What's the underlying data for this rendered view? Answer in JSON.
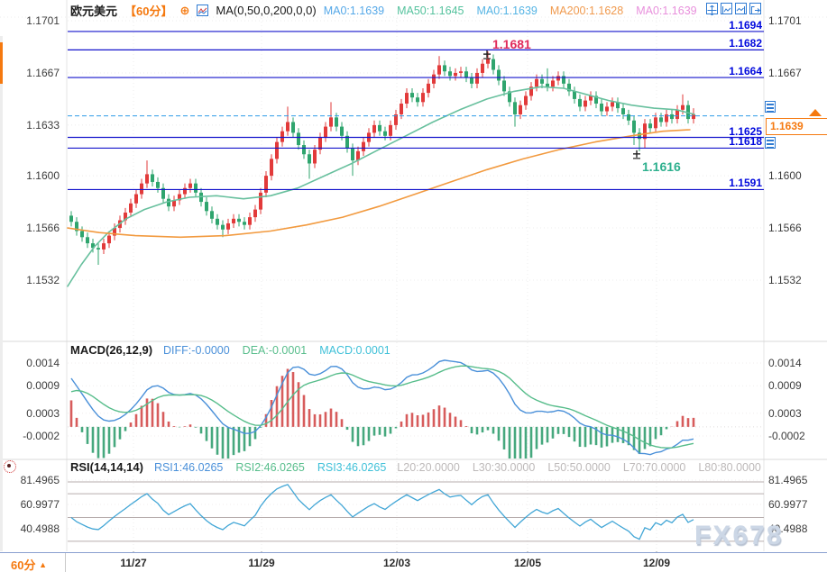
{
  "colors": {
    "candle_up": "#e23a3a",
    "candle_down": "#2fa56e",
    "level_line": "#1414cc",
    "level_label": "#0008dd",
    "current_price_line": "#2f9ce8",
    "price_tag_orange": "#f5790f",
    "macd_diff": "#4a90d9",
    "macd_dea": "#57bd8b",
    "macd_hist_up": "#d75c5c",
    "macd_hist_down": "#46a87e",
    "rsi_line": "#42a6d6",
    "rsi_level_line": "#b7adad",
    "annotation_high": "#e02a5a",
    "annotation_low": "#2eb08e",
    "header_timeframe_orange": "#f5790f"
  },
  "header": {
    "symbol": "欧元美元",
    "timeframe": "【60分】",
    "ma_formula": "MA(0,50,0,200,0,0)",
    "ma_values": [
      {
        "text": "MA0:1.1639",
        "color": "#55a8e8"
      },
      {
        "text": "MA50:1.1645",
        "color": "#55c29d"
      },
      {
        "text": "MA0:1.1639",
        "color": "#55b4e4"
      },
      {
        "text": "MA200:1.1628",
        "color": "#f09a4e"
      },
      {
        "text": "MA0:1.1639",
        "color": "#e890dc"
      }
    ]
  },
  "icons": {
    "toolbar": [
      "pan-crosshair",
      "left-axis-chart",
      "right-axis-chart",
      "exit-marker"
    ],
    "header": [
      "add-indicator-circle-plus",
      "ma-mini-chart"
    ],
    "rsi": [
      "sun-burst"
    ]
  },
  "chart_data": [
    {
      "type": "candlestick",
      "title": "欧元美元 60分",
      "y_ticks": [
        1.1701,
        1.1667,
        1.1633,
        1.16,
        1.1566,
        1.1532
      ],
      "x_ticks": [
        {
          "label": "11/27",
          "x": 148
        },
        {
          "label": "11/29",
          "x": 290
        },
        {
          "label": "12/03",
          "x": 440
        },
        {
          "label": "12/05",
          "x": 585
        },
        {
          "label": "12/09",
          "x": 728
        }
      ],
      "levels": [
        1.1694,
        1.1682,
        1.1664,
        1.1625,
        1.1618,
        1.1591
      ],
      "current_price": 1.1639,
      "annotations": [
        {
          "text": "1.1681",
          "x": 540,
          "price": 1.1681,
          "color": "#e02a5a",
          "placement": "above"
        },
        {
          "text": "1.1616",
          "x": 706,
          "price": 1.1616,
          "color": "#2eb08e",
          "placement": "below"
        }
      ],
      "candles": [
        [
          1.1574,
          1.1577,
          1.1567,
          1.157
        ],
        [
          1.157,
          1.1573,
          1.1561,
          1.1564
        ],
        [
          1.1564,
          1.1567,
          1.1557,
          1.156
        ],
        [
          1.156,
          1.1563,
          1.1553,
          1.1556
        ],
        [
          1.1556,
          1.1559,
          1.155,
          1.1553
        ],
        [
          1.1553,
          1.1556,
          1.1542,
          1.1552
        ],
        [
          1.1552,
          1.1559,
          1.1549,
          1.1556
        ],
        [
          1.1556,
          1.1564,
          1.1553,
          1.1561
        ],
        [
          1.1561,
          1.1569,
          1.1558,
          1.1566
        ],
        [
          1.1566,
          1.1574,
          1.1563,
          1.1571
        ],
        [
          1.1571,
          1.1579,
          1.1568,
          1.1576
        ],
        [
          1.1576,
          1.1585,
          1.1573,
          1.1582
        ],
        [
          1.1582,
          1.1591,
          1.1579,
          1.1588
        ],
        [
          1.1588,
          1.1598,
          1.1585,
          1.1595
        ],
        [
          1.1595,
          1.161,
          1.1592,
          1.1601
        ],
        [
          1.1601,
          1.1604,
          1.1593,
          1.1596
        ],
        [
          1.1596,
          1.1599,
          1.1589,
          1.1592
        ],
        [
          1.1592,
          1.1595,
          1.1582,
          1.1585
        ],
        [
          1.1585,
          1.1588,
          1.1577,
          1.158
        ],
        [
          1.158,
          1.1587,
          1.1577,
          1.1584
        ],
        [
          1.1584,
          1.1591,
          1.1581,
          1.1588
        ],
        [
          1.1588,
          1.1595,
          1.1585,
          1.1592
        ],
        [
          1.1592,
          1.1598,
          1.1589,
          1.1595
        ],
        [
          1.1595,
          1.1598,
          1.1586,
          1.1589
        ],
        [
          1.1589,
          1.1592,
          1.158,
          1.1583
        ],
        [
          1.1583,
          1.1586,
          1.1574,
          1.1577
        ],
        [
          1.1577,
          1.158,
          1.1569,
          1.1572
        ],
        [
          1.1572,
          1.1575,
          1.1565,
          1.1568
        ],
        [
          1.1568,
          1.1571,
          1.156,
          1.1565
        ],
        [
          1.1565,
          1.1572,
          1.1562,
          1.1569
        ],
        [
          1.1569,
          1.1575,
          1.1566,
          1.1572
        ],
        [
          1.1572,
          1.1575,
          1.1567,
          1.157
        ],
        [
          1.157,
          1.1573,
          1.1565,
          1.1568
        ],
        [
          1.1568,
          1.1576,
          1.1565,
          1.1573
        ],
        [
          1.1573,
          1.1581,
          1.157,
          1.1578
        ],
        [
          1.1578,
          1.1592,
          1.1575,
          1.1589
        ],
        [
          1.1589,
          1.1603,
          1.1586,
          1.16
        ],
        [
          1.16,
          1.1614,
          1.1597,
          1.1611
        ],
        [
          1.1611,
          1.1625,
          1.1608,
          1.1622
        ],
        [
          1.1622,
          1.1632,
          1.1619,
          1.1629
        ],
        [
          1.1629,
          1.1645,
          1.1626,
          1.1635
        ],
        [
          1.1635,
          1.1638,
          1.1625,
          1.1628
        ],
        [
          1.1628,
          1.1631,
          1.1617,
          1.162
        ],
        [
          1.162,
          1.1623,
          1.1611,
          1.1614
        ],
        [
          1.1614,
          1.1617,
          1.1598,
          1.1608
        ],
        [
          1.1608,
          1.162,
          1.1605,
          1.1617
        ],
        [
          1.1617,
          1.1628,
          1.1614,
          1.1625
        ],
        [
          1.1625,
          1.1635,
          1.1622,
          1.1632
        ],
        [
          1.1632,
          1.1648,
          1.1629,
          1.1638
        ],
        [
          1.1638,
          1.1641,
          1.1629,
          1.1632
        ],
        [
          1.1632,
          1.1635,
          1.1623,
          1.1626
        ],
        [
          1.1626,
          1.1629,
          1.1615,
          1.1618
        ],
        [
          1.1618,
          1.1621,
          1.16,
          1.161
        ],
        [
          1.161,
          1.1619,
          1.1607,
          1.1616
        ],
        [
          1.1616,
          1.1625,
          1.1613,
          1.1622
        ],
        [
          1.1622,
          1.1631,
          1.1619,
          1.1628
        ],
        [
          1.1628,
          1.1636,
          1.1625,
          1.1633
        ],
        [
          1.1633,
          1.1636,
          1.1626,
          1.1629
        ],
        [
          1.1629,
          1.1632,
          1.1623,
          1.1626
        ],
        [
          1.1626,
          1.1636,
          1.1623,
          1.1633
        ],
        [
          1.1633,
          1.1643,
          1.163,
          1.164
        ],
        [
          1.164,
          1.165,
          1.1637,
          1.1647
        ],
        [
          1.1647,
          1.1657,
          1.1644,
          1.1654
        ],
        [
          1.1654,
          1.1657,
          1.1648,
          1.1651
        ],
        [
          1.1651,
          1.1654,
          1.1645,
          1.1648
        ],
        [
          1.1648,
          1.1657,
          1.1645,
          1.1654
        ],
        [
          1.1654,
          1.1663,
          1.1651,
          1.166
        ],
        [
          1.166,
          1.1669,
          1.1657,
          1.1666
        ],
        [
          1.1666,
          1.1678,
          1.1663,
          1.1672
        ],
        [
          1.1672,
          1.1675,
          1.1665,
          1.1668
        ],
        [
          1.1668,
          1.1671,
          1.1662,
          1.1665
        ],
        [
          1.1665,
          1.167,
          1.1662,
          1.1667
        ],
        [
          1.1667,
          1.1671,
          1.1664,
          1.1668
        ],
        [
          1.1668,
          1.1671,
          1.1661,
          1.1664
        ],
        [
          1.1664,
          1.1667,
          1.1657,
          1.166
        ],
        [
          1.166,
          1.167,
          1.1657,
          1.1667
        ],
        [
          1.1667,
          1.1676,
          1.1664,
          1.1673
        ],
        [
          1.1673,
          1.1681,
          1.167,
          1.1676
        ],
        [
          1.1676,
          1.1679,
          1.1666,
          1.1669
        ],
        [
          1.1669,
          1.1672,
          1.1659,
          1.1662
        ],
        [
          1.1662,
          1.1665,
          1.1652,
          1.1655
        ],
        [
          1.1655,
          1.1658,
          1.1645,
          1.1648
        ],
        [
          1.1648,
          1.1651,
          1.1632,
          1.164
        ],
        [
          1.164,
          1.1649,
          1.1637,
          1.1646
        ],
        [
          1.1646,
          1.1655,
          1.1643,
          1.1652
        ],
        [
          1.1652,
          1.1661,
          1.1649,
          1.1658
        ],
        [
          1.1658,
          1.1666,
          1.1655,
          1.1663
        ],
        [
          1.1663,
          1.1666,
          1.1657,
          1.166
        ],
        [
          1.166,
          1.167,
          1.1655,
          1.1658
        ],
        [
          1.1658,
          1.1665,
          1.1655,
          1.1662
        ],
        [
          1.1662,
          1.1668,
          1.1659,
          1.1665
        ],
        [
          1.1665,
          1.1668,
          1.1657,
          1.166
        ],
        [
          1.166,
          1.1663,
          1.1652,
          1.1655
        ],
        [
          1.1655,
          1.1658,
          1.1647,
          1.165
        ],
        [
          1.165,
          1.1653,
          1.1642,
          1.1645
        ],
        [
          1.1645,
          1.1652,
          1.1642,
          1.1649
        ],
        [
          1.1649,
          1.1655,
          1.1646,
          1.1652
        ],
        [
          1.1652,
          1.1655,
          1.1644,
          1.1647
        ],
        [
          1.1647,
          1.165,
          1.1639,
          1.1642
        ],
        [
          1.1642,
          1.1648,
          1.1639,
          1.1645
        ],
        [
          1.1645,
          1.1651,
          1.1642,
          1.1648
        ],
        [
          1.1648,
          1.1651,
          1.1641,
          1.1644
        ],
        [
          1.1644,
          1.1647,
          1.1637,
          1.164
        ],
        [
          1.164,
          1.1643,
          1.1633,
          1.1636
        ],
        [
          1.1636,
          1.1639,
          1.162,
          1.1628
        ],
        [
          1.1628,
          1.1631,
          1.1616,
          1.1624
        ],
        [
          1.1624,
          1.1637,
          1.1618,
          1.1634
        ],
        [
          1.1634,
          1.1637,
          1.1628,
          1.1631
        ],
        [
          1.1631,
          1.1641,
          1.1628,
          1.1638
        ],
        [
          1.1638,
          1.1641,
          1.1632,
          1.1635
        ],
        [
          1.1635,
          1.1643,
          1.1632,
          1.164
        ],
        [
          1.164,
          1.1643,
          1.1634,
          1.1637
        ],
        [
          1.1637,
          1.1646,
          1.1634,
          1.1643
        ],
        [
          1.1643,
          1.1653,
          1.164,
          1.1646
        ],
        [
          1.1646,
          1.1649,
          1.1634,
          1.1637
        ],
        [
          1.1637,
          1.1644,
          1.1634,
          1.164
        ]
      ],
      "ma_lines": [
        {
          "name": "MA50",
          "color": "#68c09e",
          "points": [
            [
              75,
              1.1528
            ],
            [
              90,
              1.1542
            ],
            [
              105,
              1.1554
            ],
            [
              120,
              1.1563
            ],
            [
              140,
              1.1572
            ],
            [
              160,
              1.1578
            ],
            [
              185,
              1.1583
            ],
            [
              210,
              1.1586
            ],
            [
              240,
              1.1587
            ],
            [
              270,
              1.1585
            ],
            [
              300,
              1.1587
            ],
            [
              330,
              1.1592
            ],
            [
              360,
              1.16
            ],
            [
              390,
              1.1608
            ],
            [
              420,
              1.1617
            ],
            [
              450,
              1.1626
            ],
            [
              480,
              1.1635
            ],
            [
              510,
              1.1643
            ],
            [
              540,
              1.165
            ],
            [
              570,
              1.1655
            ],
            [
              600,
              1.1658
            ],
            [
              625,
              1.1657
            ],
            [
              650,
              1.1653
            ],
            [
              675,
              1.1649
            ],
            [
              700,
              1.1646
            ],
            [
              725,
              1.1644
            ],
            [
              750,
              1.1643
            ],
            [
              770,
              1.164
            ]
          ]
        },
        {
          "name": "MA200",
          "color": "#f29a3f",
          "points": [
            [
              75,
              1.1566
            ],
            [
              110,
              1.1563
            ],
            [
              150,
              1.1561
            ],
            [
              200,
              1.156
            ],
            [
              250,
              1.1561
            ],
            [
              300,
              1.1564
            ],
            [
              340,
              1.1568
            ],
            [
              380,
              1.1573
            ],
            [
              420,
              1.158
            ],
            [
              460,
              1.1588
            ],
            [
              500,
              1.1596
            ],
            [
              540,
              1.1604
            ],
            [
              580,
              1.1611
            ],
            [
              620,
              1.1617
            ],
            [
              660,
              1.1622
            ],
            [
              700,
              1.1626
            ],
            [
              735,
              1.1629
            ],
            [
              765,
              1.163
            ]
          ]
        }
      ]
    },
    {
      "type": "macd",
      "title": "MACD(26,12,9)",
      "params": [
        26,
        12,
        9
      ],
      "legend": [
        {
          "text": "DIFF:-0.0000",
          "color": "#4a90d9"
        },
        {
          "text": "DEA:-0.0001",
          "color": "#57bd8b"
        },
        {
          "text": "MACD:0.0001",
          "color": "#3fc0d8"
        }
      ],
      "y_ticks": [
        0.0014,
        0.0009,
        0.0003,
        -0.0002
      ]
    },
    {
      "type": "rsi",
      "title": "RSI(14,14,14)",
      "params": [
        14,
        14,
        14
      ],
      "legend": [
        {
          "text": "RSI1:46.0265",
          "color": "#4a90d9"
        },
        {
          "text": "RSI2:46.0265",
          "color": "#57bd8b"
        },
        {
          "text": "RSI3:46.0265",
          "color": "#3fc0d8"
        }
      ],
      "levels_legend": [
        "L20:20.0000",
        "L30:30.0000",
        "L50:50.0000",
        "L70:70.0000",
        "L80:80.0000"
      ],
      "y_ticks": [
        81.4965,
        60.9977,
        40.4988
      ],
      "level_lines": [
        80,
        70,
        50,
        30
      ]
    }
  ],
  "price_tag": {
    "value": "1.1639"
  },
  "bottom_bar": {
    "timeframe": "60分",
    "arrow": "▲"
  },
  "watermark": "FX678"
}
